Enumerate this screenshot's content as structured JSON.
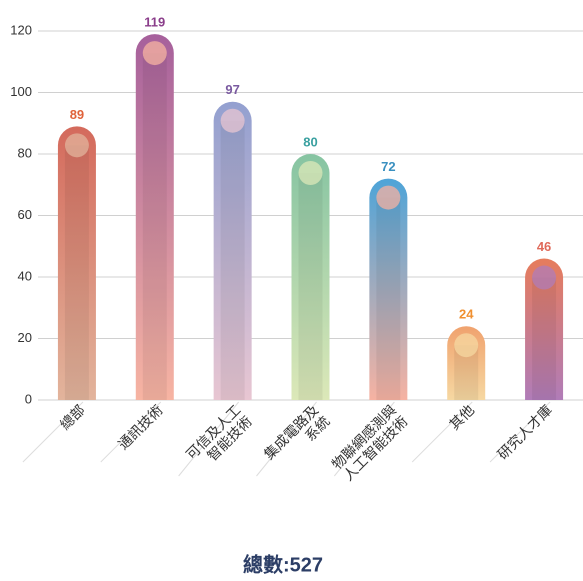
{
  "chart_data": {
    "type": "bar",
    "categories": [
      [
        "總部"
      ],
      [
        "通訊技術"
      ],
      [
        "可信及人工",
        "智能技術"
      ],
      [
        "集成電路及",
        "系統"
      ],
      [
        "物聯網感測與",
        "人工智能技術"
      ],
      [
        "其他"
      ],
      [
        "研究人才庫"
      ]
    ],
    "values": [
      89,
      119,
      97,
      80,
      72,
      24,
      46
    ],
    "colors": [
      "#d46a5c",
      "#a6609c",
      "#93a0d0",
      "#86c4a2",
      "#4ea4d8",
      "#f0a26e",
      "#e67c5c"
    ],
    "bottom_colors": [
      "#e2b49c",
      "#f7b4a2",
      "#e8c6d2",
      "#dce8b8",
      "#f6b2a2",
      "#f6d8a2",
      "#b07cb8"
    ],
    "label_colors": [
      "#e0623a",
      "#8a3d8a",
      "#7a5aa0",
      "#3aa0a0",
      "#3a90c0",
      "#f09030",
      "#e06a5a"
    ],
    "ylim": [
      0,
      120
    ],
    "yticks": [
      0,
      20,
      40,
      60,
      80,
      100,
      120
    ],
    "grid": true,
    "footer": "總數:527"
  }
}
